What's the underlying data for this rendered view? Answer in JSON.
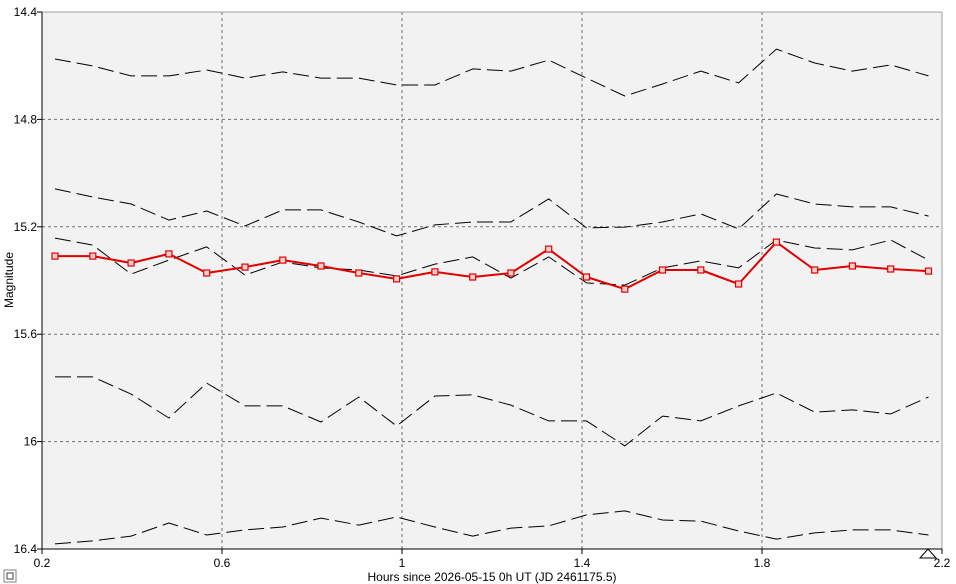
{
  "chart_data": {
    "type": "line",
    "xlabel": "Hours since 2026-05-15 0h UT (JD 2461175.5)",
    "ylabel": "Magnitude",
    "xlim": [
      0.2,
      2.2
    ],
    "ylim": [
      14.4,
      16.4
    ],
    "y_inverted": true,
    "grid": true,
    "xticks": [
      0.2,
      0.6,
      1,
      1.4,
      1.8,
      2.2
    ],
    "xtick_labels": [
      "0.2",
      "0.6",
      "1",
      "1.4",
      "1.8",
      "2.2"
    ],
    "yticks": [
      14.4,
      14.8,
      15.2,
      15.6,
      16,
      16.4
    ],
    "ytick_labels": [
      "14.4",
      "14.8",
      "15.2",
      "15.6",
      "16",
      "16.4"
    ],
    "x": [
      0.229,
      0.313,
      0.398,
      0.482,
      0.566,
      0.651,
      0.735,
      0.82,
      0.904,
      0.988,
      1.073,
      1.157,
      1.242,
      1.326,
      1.41,
      1.495,
      1.579,
      1.664,
      1.748,
      1.832,
      1.917,
      2.001,
      2.086,
      2.17
    ],
    "series": [
      {
        "color": "#000000",
        "dashed": true,
        "markers": false,
        "values": [
          14.575,
          14.601,
          14.638,
          14.638,
          14.616,
          14.646,
          14.623,
          14.646,
          14.646,
          14.672,
          14.672,
          14.612,
          14.62,
          14.579,
          14.646,
          14.713,
          14.668,
          14.62,
          14.664,
          14.538,
          14.59,
          14.62,
          14.597,
          14.638
        ]
      },
      {
        "color": "#000000",
        "dashed": true,
        "markers": false,
        "values": [
          15.059,
          15.089,
          15.115,
          15.175,
          15.141,
          15.197,
          15.137,
          15.137,
          15.182,
          15.234,
          15.193,
          15.182,
          15.182,
          15.096,
          15.204,
          15.201,
          15.182,
          15.152,
          15.208,
          15.078,
          15.115,
          15.126,
          15.126,
          15.16
        ]
      },
      {
        "color": "#000000",
        "dashed": true,
        "markers": false,
        "values": [
          15.242,
          15.268,
          15.376,
          15.324,
          15.275,
          15.38,
          15.331,
          15.353,
          15.361,
          15.383,
          15.339,
          15.312,
          15.391,
          15.312,
          15.409,
          15.417,
          15.353,
          15.327,
          15.353,
          15.249,
          15.279,
          15.286,
          15.249,
          15.324
        ]
      },
      {
        "color": "#000000",
        "dashed": true,
        "markers": false,
        "values": [
          15.759,
          15.759,
          15.823,
          15.912,
          15.782,
          15.867,
          15.867,
          15.927,
          15.834,
          15.942,
          15.83,
          15.826,
          15.864,
          15.923,
          15.923,
          16.016,
          15.905,
          15.923,
          15.867,
          15.819,
          15.89,
          15.882,
          15.897,
          15.834
        ]
      },
      {
        "color": "#000000",
        "dashed": true,
        "markers": false,
        "values": [
          16.381,
          16.37,
          16.352,
          16.303,
          16.348,
          16.329,
          16.318,
          16.285,
          16.311,
          16.281,
          16.318,
          16.352,
          16.322,
          16.314,
          16.273,
          16.258,
          16.292,
          16.296,
          16.333,
          16.363,
          16.34,
          16.329,
          16.329,
          16.348
        ]
      },
      {
        "color": "#e00000",
        "dashed": false,
        "markers": true,
        "values": [
          15.309,
          15.309,
          15.335,
          15.301,
          15.372,
          15.35,
          15.324,
          15.346,
          15.372,
          15.394,
          15.368,
          15.387,
          15.372,
          15.283,
          15.387,
          15.432,
          15.361,
          15.361,
          15.413,
          15.257,
          15.361,
          15.346,
          15.357,
          15.365
        ]
      }
    ]
  },
  "colors": {
    "plot_background": "#f2f2f2",
    "page_background": "#ffffff",
    "grid": "#6e6e6e",
    "target_series": "#e00000",
    "comparison_series": "#000000"
  },
  "icons": {
    "range_marker": "triangle-up-icon",
    "corner_box": "square-icon"
  }
}
